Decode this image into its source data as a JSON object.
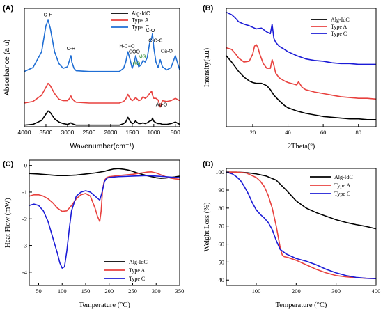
{
  "chart_data": [
    {
      "panel": "(A)",
      "type": "line",
      "xlabel": "Wavenumber(cm⁻¹)",
      "ylabel": "Absorbance (a.u)",
      "xlim": [
        4000,
        400
      ],
      "ylim": [
        0,
        1.5
      ],
      "x_ticks": [
        4000,
        3500,
        3000,
        2500,
        2000,
        1500,
        1000,
        500
      ],
      "show_y_ticks": false,
      "legend": "top-right",
      "series": [
        {
          "name": "Alg-IdC",
          "color": "#000000",
          "x": [
            4000,
            3800,
            3600,
            3500,
            3450,
            3400,
            3300,
            3200,
            3100,
            3000,
            2950,
            2920,
            2900,
            2850,
            2800,
            2500,
            2000,
            1800,
            1700,
            1650,
            1600,
            1550,
            1500,
            1450,
            1420,
            1400,
            1350,
            1300,
            1250,
            1200,
            1150,
            1100,
            1050,
            1030,
            1000,
            950,
            900,
            850,
            800,
            700,
            600,
            500,
            400
          ],
          "y": [
            0.02,
            0.03,
            0.08,
            0.16,
            0.2,
            0.18,
            0.1,
            0.06,
            0.04,
            0.03,
            0.04,
            0.05,
            0.04,
            0.03,
            0.02,
            0.02,
            0.02,
            0.02,
            0.04,
            0.06,
            0.12,
            0.07,
            0.04,
            0.05,
            0.08,
            0.06,
            0.04,
            0.04,
            0.05,
            0.04,
            0.05,
            0.07,
            0.08,
            0.11,
            0.07,
            0.05,
            0.04,
            0.04,
            0.03,
            0.03,
            0.04,
            0.06,
            0.03
          ]
        },
        {
          "name": "Type A",
          "color": "#e8413e",
          "x": [
            4000,
            3800,
            3600,
            3500,
            3450,
            3400,
            3300,
            3200,
            3100,
            3000,
            2950,
            2920,
            2900,
            2850,
            2800,
            2500,
            2000,
            1800,
            1700,
            1650,
            1600,
            1550,
            1500,
            1450,
            1420,
            1400,
            1350,
            1300,
            1250,
            1200,
            1150,
            1100,
            1050,
            1030,
            1000,
            950,
            900,
            850,
            800,
            700,
            600,
            500,
            400
          ],
          "y": [
            0.3,
            0.32,
            0.4,
            0.5,
            0.55,
            0.52,
            0.42,
            0.35,
            0.33,
            0.33,
            0.36,
            0.39,
            0.36,
            0.33,
            0.31,
            0.3,
            0.3,
            0.3,
            0.32,
            0.35,
            0.41,
            0.36,
            0.33,
            0.35,
            0.37,
            0.36,
            0.33,
            0.34,
            0.38,
            0.36,
            0.38,
            0.42,
            0.45,
            0.4,
            0.36,
            0.36,
            0.34,
            0.25,
            0.33,
            0.32,
            0.33,
            0.36,
            0.33
          ]
        },
        {
          "name": "Type C",
          "color": "#1f6ed4",
          "x": [
            4000,
            3800,
            3600,
            3500,
            3450,
            3400,
            3300,
            3200,
            3100,
            3000,
            2950,
            2920,
            2900,
            2850,
            2800,
            2500,
            2000,
            1800,
            1700,
            1650,
            1600,
            1550,
            1500,
            1450,
            1420,
            1400,
            1350,
            1300,
            1250,
            1200,
            1150,
            1100,
            1050,
            1030,
            1000,
            950,
            900,
            850,
            800,
            700,
            600,
            500,
            400
          ],
          "y": [
            0.7,
            0.75,
            0.95,
            1.28,
            1.35,
            1.25,
            0.95,
            0.8,
            0.74,
            0.76,
            0.85,
            0.9,
            0.82,
            0.74,
            0.71,
            0.7,
            0.7,
            0.7,
            0.74,
            0.82,
            0.95,
            0.85,
            0.74,
            0.82,
            0.9,
            0.86,
            0.76,
            0.78,
            0.84,
            0.82,
            0.88,
            1.05,
            1.12,
            1.18,
            1.0,
            0.82,
            0.75,
            0.85,
            0.76,
            0.72,
            0.75,
            0.9,
            0.72
          ]
        }
      ],
      "annotations": [
        {
          "text": "O-H",
          "x": 3450,
          "y": 1.4,
          "color": "#000000"
        },
        {
          "text": "C-H",
          "x": 2920,
          "y": 0.97,
          "color": "#000000"
        },
        {
          "text": "H-C=O",
          "x": 1620,
          "y": 1.0,
          "color": "#000000"
        },
        {
          "text": "COO",
          "x": 1450,
          "y": 0.93,
          "color": "#000000"
        },
        {
          "text": "MG",
          "x": 1270,
          "y": 0.87,
          "color": "#2e8b2e"
        },
        {
          "text": "GG",
          "x": 1400,
          "y": 0.78,
          "color": "#2e8b2e"
        },
        {
          "text": "C-O",
          "x": 1080,
          "y": 1.2,
          "color": "#000000"
        },
        {
          "text": "C-O-C",
          "x": 960,
          "y": 1.07,
          "color": "#000000"
        },
        {
          "text": "Ca-O",
          "x": 700,
          "y": 0.94,
          "color": "#000000"
        },
        {
          "text": "Ag-O",
          "x": 820,
          "y": 0.26,
          "color": "#000000"
        }
      ]
    },
    {
      "panel": "(B)",
      "type": "line",
      "xlabel": "2Theta(º)",
      "ylabel": "Intensity(a.u)",
      "xlim": [
        5,
        90
      ],
      "ylim": [
        0,
        1.5
      ],
      "x_ticks": [
        20,
        40,
        60,
        80
      ],
      "show_y_ticks": false,
      "legend": "top-right",
      "series": [
        {
          "name": "Alg-IdC",
          "color": "#000000",
          "x": [
            5,
            8,
            10,
            12,
            15,
            18,
            20,
            22,
            25,
            28,
            30,
            32,
            35,
            38,
            40,
            45,
            50,
            55,
            60,
            65,
            70,
            75,
            80,
            85,
            90
          ],
          "y": [
            0.9,
            0.82,
            0.76,
            0.7,
            0.63,
            0.58,
            0.56,
            0.55,
            0.55,
            0.52,
            0.47,
            0.4,
            0.33,
            0.27,
            0.24,
            0.2,
            0.17,
            0.15,
            0.13,
            0.12,
            0.11,
            0.1,
            0.1,
            0.09,
            0.09
          ]
        },
        {
          "name": "Type A",
          "color": "#e8413e",
          "x": [
            5,
            8,
            10,
            12,
            15,
            18,
            20,
            21,
            22,
            23,
            24,
            26,
            28,
            30,
            31,
            32,
            33,
            35,
            38,
            40,
            45,
            46,
            48,
            50,
            55,
            60,
            65,
            70,
            75,
            80,
            85,
            90
          ],
          "y": [
            1.0,
            0.98,
            0.93,
            0.87,
            0.82,
            0.83,
            0.92,
            1.02,
            1.04,
            1.0,
            0.92,
            0.8,
            0.74,
            0.74,
            0.85,
            0.78,
            0.68,
            0.62,
            0.58,
            0.56,
            0.53,
            0.57,
            0.5,
            0.47,
            0.44,
            0.42,
            0.4,
            0.38,
            0.37,
            0.36,
            0.36,
            0.35
          ]
        },
        {
          "name": "Type C",
          "color": "#1b1bd6",
          "x": [
            5,
            8,
            10,
            12,
            15,
            18,
            20,
            22,
            25,
            28,
            30,
            31,
            32,
            33,
            35,
            38,
            40,
            45,
            50,
            55,
            60,
            65,
            70,
            75,
            80,
            85,
            90
          ],
          "y": [
            1.45,
            1.42,
            1.38,
            1.33,
            1.3,
            1.28,
            1.26,
            1.24,
            1.25,
            1.2,
            1.18,
            1.3,
            1.12,
            1.07,
            1.02,
            0.98,
            0.95,
            0.9,
            0.86,
            0.84,
            0.83,
            0.81,
            0.8,
            0.8,
            0.79,
            0.79,
            0.79
          ]
        }
      ]
    },
    {
      "panel": "(C)",
      "type": "line",
      "xlabel": "Temperature (°C)",
      "ylabel": "Heat Flow (mW)",
      "xlim": [
        30,
        350
      ],
      "ylim": [
        -4.5,
        0.2
      ],
      "x_ticks": [
        50,
        100,
        150,
        200,
        250,
        300,
        350
      ],
      "y_ticks": [
        0,
        -1,
        -2,
        -3,
        -4
      ],
      "legend": "bottom-right",
      "series": [
        {
          "name": "Alg-IdC",
          "color": "#000000",
          "x": [
            30,
            50,
            70,
            90,
            110,
            130,
            150,
            170,
            190,
            200,
            210,
            220,
            230,
            240,
            250,
            260,
            270,
            280,
            290,
            300,
            310,
            320,
            330,
            340,
            350
          ],
          "y": [
            -0.3,
            -0.32,
            -0.35,
            -0.38,
            -0.38,
            -0.36,
            -0.32,
            -0.28,
            -0.22,
            -0.17,
            -0.13,
            -0.12,
            -0.14,
            -0.17,
            -0.22,
            -0.28,
            -0.33,
            -0.38,
            -0.42,
            -0.46,
            -0.48,
            -0.47,
            -0.45,
            -0.43,
            -0.4
          ]
        },
        {
          "name": "Type A",
          "color": "#e8413e",
          "x": [
            30,
            40,
            50,
            60,
            70,
            80,
            90,
            100,
            110,
            120,
            130,
            140,
            150,
            160,
            170,
            175,
            180,
            183,
            186,
            190,
            195,
            200,
            220,
            250,
            280,
            290,
            300,
            310,
            320,
            330,
            340,
            350
          ],
          "y": [
            -1.15,
            -1.1,
            -1.1,
            -1.15,
            -1.25,
            -1.4,
            -1.6,
            -1.72,
            -1.7,
            -1.5,
            -1.25,
            -1.1,
            -1.05,
            -1.15,
            -1.6,
            -1.9,
            -2.1,
            -1.7,
            -0.9,
            -0.55,
            -0.45,
            -0.42,
            -0.38,
            -0.33,
            -0.25,
            -0.24,
            -0.28,
            -0.35,
            -0.42,
            -0.47,
            -0.5,
            -0.52
          ]
        },
        {
          "name": "Type C",
          "color": "#1b1bd6",
          "x": [
            30,
            40,
            50,
            60,
            70,
            80,
            90,
            95,
            100,
            105,
            110,
            115,
            120,
            130,
            140,
            150,
            160,
            170,
            180,
            185,
            190,
            195,
            200,
            220,
            250,
            280,
            300,
            320,
            340,
            350
          ],
          "y": [
            -1.5,
            -1.45,
            -1.5,
            -1.7,
            -2.1,
            -2.7,
            -3.3,
            -3.65,
            -3.85,
            -3.8,
            -3.2,
            -2.4,
            -1.7,
            -1.15,
            -1.0,
            -0.95,
            -1.0,
            -1.15,
            -1.3,
            -1.0,
            -0.6,
            -0.48,
            -0.45,
            -0.42,
            -0.4,
            -0.38,
            -0.4,
            -0.42,
            -0.45,
            -0.45
          ]
        }
      ]
    },
    {
      "panel": "(D)",
      "type": "line",
      "xlabel": "Temperature (°C)",
      "ylabel": "Weight Loss (%)",
      "xlim": [
        25,
        400
      ],
      "ylim": [
        37,
        102
      ],
      "x_ticks": [
        100,
        200,
        300,
        400
      ],
      "y_ticks": [
        40,
        50,
        60,
        70,
        80,
        90,
        100
      ],
      "legend": "top-right",
      "series": [
        {
          "name": "Alg-IdC",
          "color": "#000000",
          "x": [
            25,
            50,
            75,
            100,
            125,
            150,
            175,
            200,
            225,
            250,
            275,
            300,
            325,
            350,
            375,
            400
          ],
          "y": [
            100,
            100,
            99.7,
            99,
            97.8,
            95.5,
            90,
            84,
            80,
            77.5,
            75.5,
            73.5,
            72,
            70.8,
            69.8,
            68.5
          ]
        },
        {
          "name": "Type A",
          "color": "#e8413e",
          "x": [
            25,
            50,
            75,
            100,
            110,
            120,
            130,
            140,
            150,
            160,
            165,
            170,
            180,
            200,
            220,
            250,
            275,
            300,
            325,
            350,
            375,
            400
          ],
          "y": [
            100,
            100,
            99.5,
            97,
            95,
            92,
            87,
            80,
            70,
            58,
            54,
            53,
            52.5,
            51,
            49,
            46,
            44,
            42.5,
            41.8,
            41.3,
            41,
            40.8
          ]
        },
        {
          "name": "Type C",
          "color": "#1b1bd6",
          "x": [
            25,
            40,
            50,
            60,
            70,
            80,
            90,
            100,
            110,
            120,
            130,
            140,
            150,
            160,
            175,
            200,
            225,
            250,
            275,
            300,
            325,
            350,
            375,
            400
          ],
          "y": [
            100,
            99,
            97.5,
            95.5,
            92,
            88,
            83,
            79,
            76.5,
            74.5,
            72,
            68,
            62,
            57,
            54.5,
            52,
            50.5,
            48.5,
            46,
            44,
            42.5,
            41.5,
            41,
            40.8
          ]
        }
      ]
    }
  ]
}
